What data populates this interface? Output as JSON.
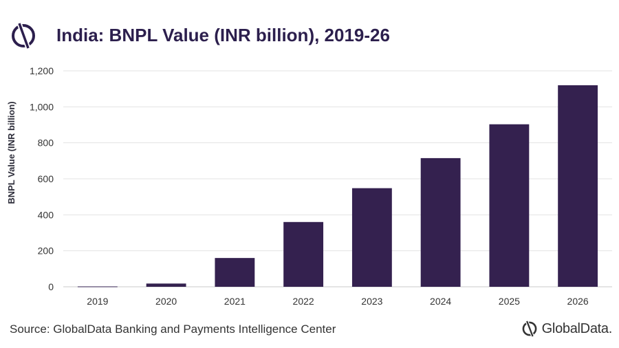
{
  "header": {
    "title": "India: BNPL Value (INR billion), 2019-26"
  },
  "chart_data": {
    "type": "bar",
    "title": "India: BNPL Value (INR billion), 2019-26",
    "xlabel": "",
    "ylabel": "BNPL Value (INR billion)",
    "categories": [
      "2019",
      "2020",
      "2021",
      "2022",
      "2023",
      "2024",
      "2025",
      "2026"
    ],
    "values": [
      2,
      18,
      160,
      360,
      548,
      715,
      903,
      1120
    ],
    "ylim": [
      0,
      1200
    ],
    "yticks": [
      0,
      200,
      400,
      600,
      800,
      1000,
      1200
    ],
    "ytick_labels": [
      "0",
      "200",
      "400",
      "600",
      "800",
      "1,000",
      "1,200"
    ],
    "grid": true,
    "bar_color": "#34214f"
  },
  "footer": {
    "source": "Source: GlobalData Banking and Payments Intelligence Center",
    "brand": "GlobalData."
  }
}
